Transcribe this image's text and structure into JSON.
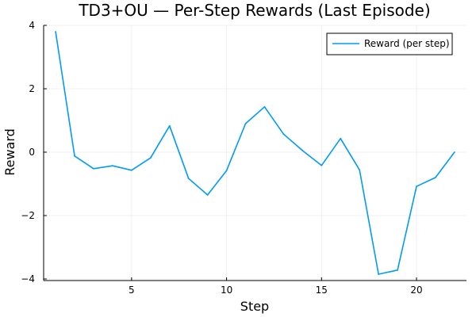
{
  "chart_data": {
    "type": "line",
    "title": "TD3+OU — Per-Step Rewards (Last Episode)",
    "xlabel": "Step",
    "ylabel": "Reward",
    "xlim": [
      0.37,
      22.63
    ],
    "ylim": [
      -4.05,
      4.0
    ],
    "xticks": [
      5,
      10,
      15,
      20
    ],
    "xtick_labels": [
      "5",
      "10",
      "15",
      "20"
    ],
    "yticks": [
      -4,
      -2,
      0,
      2,
      4
    ],
    "ytick_labels": [
      "−4",
      "−2",
      "0",
      "2",
      "4"
    ],
    "grid": true,
    "legend_position": "top-right",
    "series": [
      {
        "name": "Reward (per step)",
        "color": "#009af9",
        "x": [
          1,
          2,
          3,
          4,
          5,
          6,
          7,
          8,
          9,
          10,
          11,
          12,
          13,
          14,
          15,
          16,
          17,
          18,
          19,
          20,
          21,
          22
        ],
        "values": [
          3.8,
          -0.12,
          -0.52,
          -0.43,
          -0.57,
          -0.18,
          0.83,
          -0.83,
          -1.35,
          -0.58,
          0.9,
          1.43,
          0.57,
          0.05,
          -0.42,
          0.43,
          -0.56,
          -3.85,
          -3.72,
          -1.08,
          -0.8,
          0.0
        ]
      }
    ]
  }
}
